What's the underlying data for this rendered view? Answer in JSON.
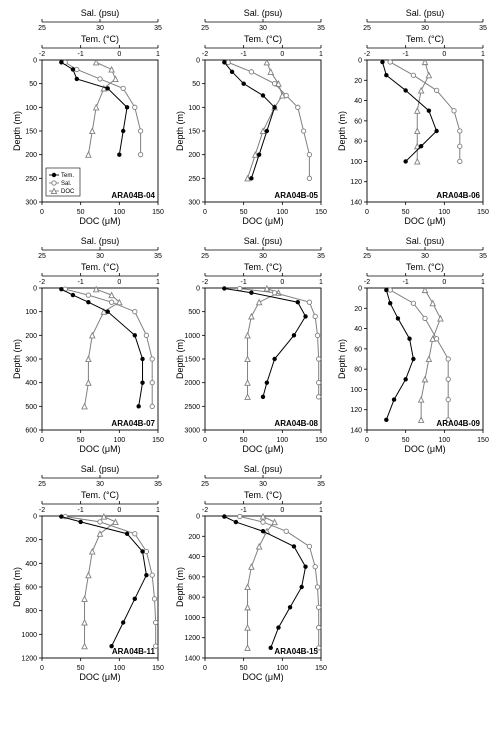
{
  "global": {
    "axis_labels": {
      "salinity": "Sal. (psu)",
      "temperature": "Tem. (°C)",
      "depth": "Depth (m)",
      "doc": "DOC (μM)"
    },
    "colors": {
      "tem": "#000000",
      "sal": "#808080",
      "doc": "#808080",
      "axis": "#000000",
      "bg": "#ffffff"
    },
    "symbols": {
      "tem": "filled-circle",
      "sal": "open-circle",
      "doc": "open-triangle"
    },
    "legend": {
      "items": [
        "Tem.",
        "Sal.",
        "DOC"
      ]
    }
  },
  "panels": [
    {
      "id": "ARA04B-04",
      "tem_range": [
        -2,
        1
      ],
      "tem_ticks": [
        -2,
        -1,
        0,
        1
      ],
      "sal_range": [
        25,
        35
      ],
      "sal_ticks": [
        25,
        30,
        35
      ],
      "doc_range": [
        0,
        150
      ],
      "doc_ticks": [
        0,
        50,
        100,
        150
      ],
      "depth_range": [
        0,
        300
      ],
      "depth_ticks": [
        0,
        50,
        100,
        150,
        200,
        250,
        300
      ],
      "tem": [
        [
          -1.5,
          5
        ],
        [
          -1.2,
          20
        ],
        [
          -1.1,
          40
        ],
        [
          -0.3,
          60
        ],
        [
          0.2,
          100
        ],
        [
          0.1,
          150
        ],
        [
          0.0,
          200
        ]
      ],
      "sal": [
        [
          27,
          5
        ],
        [
          28,
          20
        ],
        [
          30,
          40
        ],
        [
          32,
          60
        ],
        [
          33,
          100
        ],
        [
          33.5,
          150
        ],
        [
          33.5,
          200
        ]
      ],
      "doc": [
        [
          70,
          5
        ],
        [
          90,
          20
        ],
        [
          95,
          40
        ],
        [
          80,
          60
        ],
        [
          70,
          100
        ],
        [
          65,
          150
        ],
        [
          60,
          200
        ]
      ],
      "show_legend": true
    },
    {
      "id": "ARA04B-05",
      "tem_range": [
        -2,
        1
      ],
      "tem_ticks": [
        -2,
        -1,
        0,
        1
      ],
      "sal_range": [
        25,
        35
      ],
      "sal_ticks": [
        25,
        30,
        35
      ],
      "doc_range": [
        0,
        150
      ],
      "doc_ticks": [
        0,
        50,
        100,
        150
      ],
      "depth_range": [
        0,
        300
      ],
      "depth_ticks": [
        0,
        50,
        100,
        150,
        200,
        250,
        300
      ],
      "tem": [
        [
          -1.5,
          5
        ],
        [
          -1.3,
          25
        ],
        [
          -1.0,
          50
        ],
        [
          -0.5,
          75
        ],
        [
          -0.2,
          100
        ],
        [
          -0.4,
          150
        ],
        [
          -0.6,
          200
        ],
        [
          -0.8,
          250
        ]
      ],
      "sal": [
        [
          27,
          5
        ],
        [
          29,
          25
        ],
        [
          31,
          50
        ],
        [
          32,
          75
        ],
        [
          33,
          100
        ],
        [
          33.5,
          150
        ],
        [
          34,
          200
        ],
        [
          34,
          250
        ]
      ],
      "doc": [
        [
          80,
          5
        ],
        [
          85,
          25
        ],
        [
          95,
          50
        ],
        [
          100,
          75
        ],
        [
          90,
          100
        ],
        [
          75,
          150
        ],
        [
          65,
          200
        ],
        [
          55,
          250
        ]
      ]
    },
    {
      "id": "ARA04B-06",
      "tem_range": [
        -2,
        1
      ],
      "tem_ticks": [
        -2,
        -1,
        0,
        1
      ],
      "sal_range": [
        25,
        35
      ],
      "sal_ticks": [
        25,
        30,
        35
      ],
      "doc_range": [
        0,
        150
      ],
      "doc_ticks": [
        0,
        50,
        100,
        150
      ],
      "depth_range": [
        0,
        140
      ],
      "depth_ticks": [
        0,
        20,
        40,
        60,
        80,
        100,
        120,
        140
      ],
      "tem": [
        [
          -1.6,
          2
        ],
        [
          -1.5,
          15
        ],
        [
          -1.0,
          30
        ],
        [
          -0.4,
          50
        ],
        [
          -0.2,
          70
        ],
        [
          -0.6,
          85
        ],
        [
          -1.0,
          100
        ]
      ],
      "sal": [
        [
          27,
          2
        ],
        [
          29,
          15
        ],
        [
          31,
          30
        ],
        [
          32.5,
          50
        ],
        [
          33,
          70
        ],
        [
          33,
          85
        ],
        [
          33,
          100
        ]
      ],
      "doc": [
        [
          75,
          2
        ],
        [
          80,
          15
        ],
        [
          70,
          30
        ],
        [
          65,
          50
        ],
        [
          65,
          70
        ],
        [
          65,
          85
        ],
        [
          65,
          100
        ]
      ]
    },
    {
      "id": "ARA04B-07",
      "tem_range": [
        -2,
        1
      ],
      "tem_ticks": [
        -2,
        -1,
        0,
        1
      ],
      "sal_range": [
        25,
        35
      ],
      "sal_ticks": [
        25,
        30,
        35
      ],
      "doc_range": [
        0,
        150
      ],
      "doc_ticks": [
        0,
        50,
        100,
        150
      ],
      "depth_range": [
        0,
        600
      ],
      "depth_ticks": [
        0,
        100,
        200,
        300,
        400,
        500,
        600
      ],
      "tem": [
        [
          -1.5,
          5
        ],
        [
          -1.2,
          30
        ],
        [
          -0.8,
          60
        ],
        [
          -0.3,
          100
        ],
        [
          0.4,
          200
        ],
        [
          0.6,
          300
        ],
        [
          0.6,
          400
        ],
        [
          0.5,
          500
        ]
      ],
      "sal": [
        [
          27,
          5
        ],
        [
          29,
          30
        ],
        [
          31,
          60
        ],
        [
          33,
          100
        ],
        [
          34,
          200
        ],
        [
          34.5,
          300
        ],
        [
          34.5,
          400
        ],
        [
          34.5,
          500
        ]
      ],
      "doc": [
        [
          70,
          5
        ],
        [
          90,
          30
        ],
        [
          100,
          60
        ],
        [
          80,
          100
        ],
        [
          65,
          200
        ],
        [
          60,
          300
        ],
        [
          60,
          400
        ],
        [
          55,
          500
        ]
      ]
    },
    {
      "id": "ARA04B-08",
      "tem_range": [
        -2,
        1
      ],
      "tem_ticks": [
        -2,
        -1,
        0,
        1
      ],
      "sal_range": [
        25,
        35
      ],
      "sal_ticks": [
        25,
        30,
        35
      ],
      "doc_range": [
        0,
        150
      ],
      "doc_ticks": [
        0,
        50,
        100,
        150
      ],
      "depth_range": [
        0,
        3000
      ],
      "depth_ticks": [
        0,
        500,
        1000,
        1500,
        2000,
        2500,
        3000
      ],
      "tem": [
        [
          -1.5,
          10
        ],
        [
          -0.8,
          100
        ],
        [
          0.4,
          300
        ],
        [
          0.6,
          600
        ],
        [
          0.3,
          1000
        ],
        [
          -0.2,
          1500
        ],
        [
          -0.4,
          2000
        ],
        [
          -0.5,
          2300
        ]
      ],
      "sal": [
        [
          28,
          10
        ],
        [
          31,
          100
        ],
        [
          34,
          300
        ],
        [
          34.5,
          600
        ],
        [
          34.7,
          1000
        ],
        [
          34.8,
          1500
        ],
        [
          34.8,
          2000
        ],
        [
          34.8,
          2300
        ]
      ],
      "doc": [
        [
          80,
          10
        ],
        [
          95,
          100
        ],
        [
          70,
          300
        ],
        [
          60,
          600
        ],
        [
          55,
          1000
        ],
        [
          55,
          1500
        ],
        [
          55,
          2000
        ],
        [
          55,
          2300
        ]
      ]
    },
    {
      "id": "ARA04B-09",
      "tem_range": [
        -2,
        1
      ],
      "tem_ticks": [
        -2,
        -1,
        0,
        1
      ],
      "sal_range": [
        25,
        35
      ],
      "sal_ticks": [
        25,
        30,
        35
      ],
      "doc_range": [
        0,
        150
      ],
      "doc_ticks": [
        0,
        50,
        100,
        150
      ],
      "depth_range": [
        0,
        140
      ],
      "depth_ticks": [
        0,
        20,
        40,
        60,
        80,
        100,
        120,
        140
      ],
      "tem": [
        [
          -1.5,
          2
        ],
        [
          -1.4,
          15
        ],
        [
          -1.2,
          30
        ],
        [
          -0.9,
          50
        ],
        [
          -0.8,
          70
        ],
        [
          -1.0,
          90
        ],
        [
          -1.3,
          110
        ],
        [
          -1.5,
          130
        ]
      ],
      "sal": [
        [
          27,
          2
        ],
        [
          29,
          15
        ],
        [
          30,
          30
        ],
        [
          31,
          50
        ],
        [
          32,
          70
        ],
        [
          32,
          90
        ],
        [
          32,
          110
        ],
        [
          32,
          130
        ]
      ],
      "doc": [
        [
          75,
          2
        ],
        [
          85,
          15
        ],
        [
          95,
          30
        ],
        [
          85,
          50
        ],
        [
          80,
          70
        ],
        [
          75,
          90
        ],
        [
          70,
          110
        ],
        [
          70,
          130
        ]
      ]
    },
    {
      "id": "ARA04B-11",
      "tem_range": [
        -2,
        1
      ],
      "tem_ticks": [
        -2,
        -1,
        0,
        1
      ],
      "sal_range": [
        25,
        35
      ],
      "sal_ticks": [
        25,
        30,
        35
      ],
      "doc_range": [
        0,
        150
      ],
      "doc_ticks": [
        0,
        50,
        100,
        150
      ],
      "depth_range": [
        0,
        1200
      ],
      "depth_ticks": [
        0,
        200,
        400,
        600,
        800,
        1000,
        1200
      ],
      "tem": [
        [
          -1.5,
          5
        ],
        [
          -1.0,
          50
        ],
        [
          0.2,
          150
        ],
        [
          0.6,
          300
        ],
        [
          0.7,
          500
        ],
        [
          0.4,
          700
        ],
        [
          0.1,
          900
        ],
        [
          -0.2,
          1100
        ]
      ],
      "sal": [
        [
          27,
          5
        ],
        [
          30,
          50
        ],
        [
          33,
          150
        ],
        [
          34,
          300
        ],
        [
          34.5,
          500
        ],
        [
          34.7,
          700
        ],
        [
          34.8,
          900
        ],
        [
          34.8,
          1100
        ]
      ],
      "doc": [
        [
          80,
          5
        ],
        [
          95,
          50
        ],
        [
          75,
          150
        ],
        [
          65,
          300
        ],
        [
          60,
          500
        ],
        [
          55,
          700
        ],
        [
          55,
          900
        ],
        [
          55,
          1100
        ]
      ]
    },
    {
      "id": "ARA04B-15",
      "tem_range": [
        -2,
        1
      ],
      "tem_ticks": [
        -2,
        -1,
        0,
        1
      ],
      "sal_range": [
        25,
        35
      ],
      "sal_ticks": [
        25,
        30,
        35
      ],
      "doc_range": [
        0,
        150
      ],
      "doc_ticks": [
        0,
        50,
        100,
        150
      ],
      "depth_range": [
        0,
        1400
      ],
      "depth_ticks": [
        0,
        200,
        400,
        600,
        800,
        1000,
        1200,
        1400
      ],
      "tem": [
        [
          -1.5,
          5
        ],
        [
          -1.2,
          60
        ],
        [
          -0.5,
          150
        ],
        [
          0.3,
          300
        ],
        [
          0.6,
          500
        ],
        [
          0.5,
          700
        ],
        [
          0.2,
          900
        ],
        [
          -0.1,
          1100
        ],
        [
          -0.3,
          1300
        ]
      ],
      "sal": [
        [
          28,
          5
        ],
        [
          30,
          60
        ],
        [
          32,
          150
        ],
        [
          34,
          300
        ],
        [
          34.5,
          500
        ],
        [
          34.7,
          700
        ],
        [
          34.8,
          900
        ],
        [
          34.8,
          1100
        ],
        [
          34.8,
          1300
        ]
      ],
      "doc": [
        [
          75,
          5
        ],
        [
          90,
          60
        ],
        [
          80,
          150
        ],
        [
          70,
          300
        ],
        [
          60,
          500
        ],
        [
          55,
          700
        ],
        [
          55,
          900
        ],
        [
          55,
          1100
        ],
        [
          55,
          1300
        ]
      ]
    }
  ]
}
